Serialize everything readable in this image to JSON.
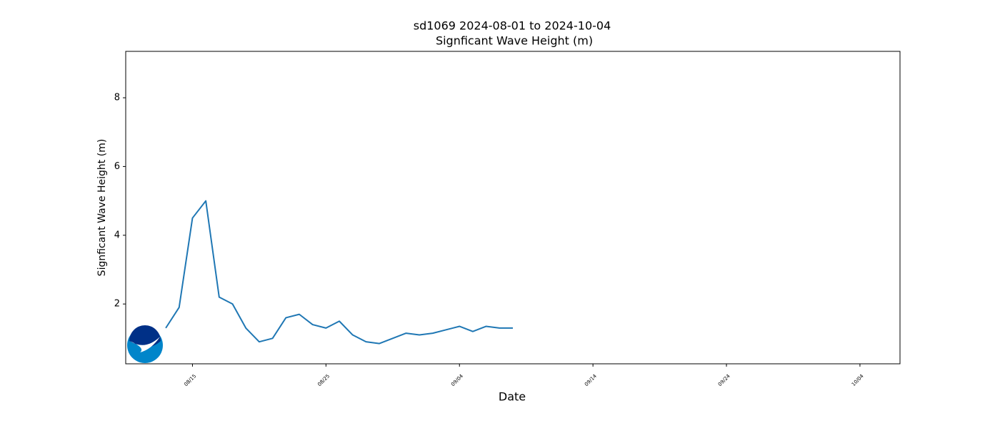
{
  "chart_data": {
    "type": "line",
    "title": "sd1069 2024-08-01 to 2024-10-04",
    "subtitle": "Signficant Wave Height (m)",
    "x_label": "Date",
    "y_label": "Signficant Wave Height (m)",
    "x": [
      "08/13",
      "08/14",
      "08/15",
      "08/16",
      "08/17",
      "08/18",
      "08/19",
      "08/20",
      "08/21",
      "08/22",
      "08/23",
      "08/24",
      "08/25",
      "08/26",
      "08/27",
      "08/28",
      "08/29",
      "08/30",
      "08/31",
      "09/01",
      "09/02",
      "09/03",
      "09/04",
      "09/05",
      "09/06",
      "09/07",
      "09/08"
    ],
    "series": [
      {
        "name": "Signficant Wave Height (m)",
        "color": "#1f77b4",
        "values": [
          1.3,
          1.9,
          4.5,
          5.0,
          2.2,
          2.0,
          1.3,
          0.9,
          1.0,
          1.6,
          1.7,
          1.4,
          1.3,
          1.5,
          1.1,
          0.9,
          0.85,
          1.0,
          1.15,
          1.1,
          1.15,
          1.25,
          1.35,
          1.2,
          1.35,
          1.3,
          1.3
        ]
      }
    ],
    "xlim": [
      "08/10",
      "10/07"
    ],
    "xticks": [
      "08/15",
      "08/25",
      "09/04",
      "09/14",
      "09/24",
      "10/04"
    ],
    "ylim": [
      0.26,
      9.35
    ],
    "yticks": [
      2,
      4,
      6,
      8
    ],
    "grid": false
  }
}
